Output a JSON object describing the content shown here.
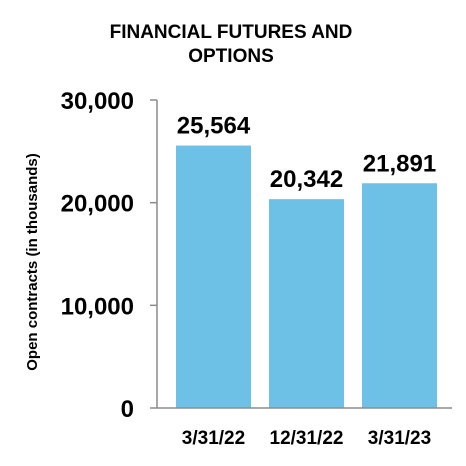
{
  "chart_data": {
    "type": "bar",
    "title_lines": [
      "FINANCIAL FUTURES AND",
      "OPTIONS"
    ],
    "xlabel": "",
    "ylabel": "Open contracts (in thousands)",
    "categories": [
      "3/31/22",
      "12/31/22",
      "3/31/23"
    ],
    "values": [
      25564,
      20342,
      21891
    ],
    "data_labels": [
      "25,564",
      "20,342",
      "21,891"
    ],
    "ylim": [
      0,
      30000
    ],
    "yticks": [
      0,
      10000,
      20000,
      30000
    ],
    "ytick_labels": [
      "0",
      "10,000",
      "20,000",
      "30,000"
    ],
    "grid": false,
    "legend": "none",
    "bar_color": "#6EC1E6",
    "axis_color": "#8C8C8C"
  }
}
